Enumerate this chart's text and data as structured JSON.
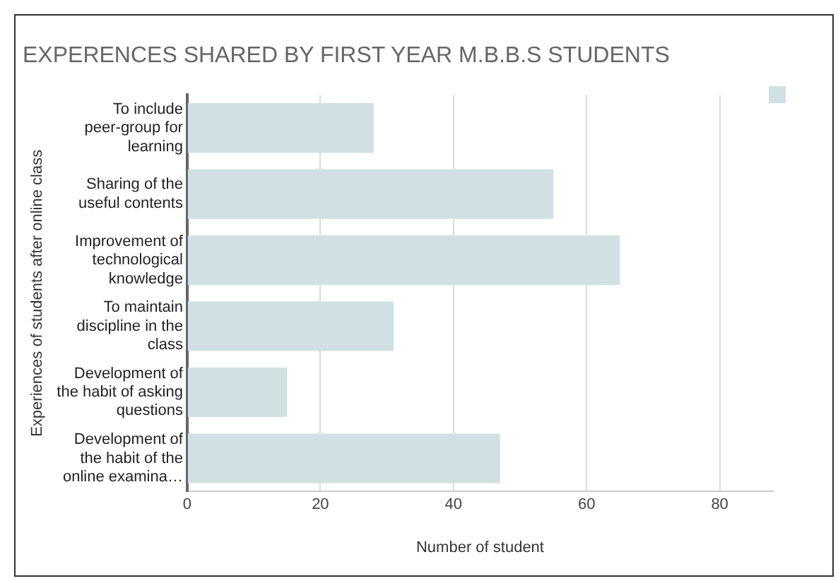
{
  "chart_data": {
    "type": "bar",
    "orientation": "horizontal",
    "title": "EXPERENCES SHARED BY FIRST YEAR M.B.B.S STUDENTS",
    "xlabel": "Number of student",
    "ylabel": "Experiences of students after online class",
    "categories": [
      "To include peer-group for learning",
      "Sharing of the useful contents",
      "Improvement of technological knowledge",
      "To maintain discipline in the class",
      "Development of the habit of asking questions",
      "Development of the habit of the online examina…"
    ],
    "values": [
      28,
      55,
      65,
      31,
      15,
      47
    ],
    "color": "#d0e0e3",
    "xlim": [
      0,
      88
    ],
    "xticks": [
      0,
      20,
      40,
      60,
      80
    ],
    "grid": "x"
  }
}
